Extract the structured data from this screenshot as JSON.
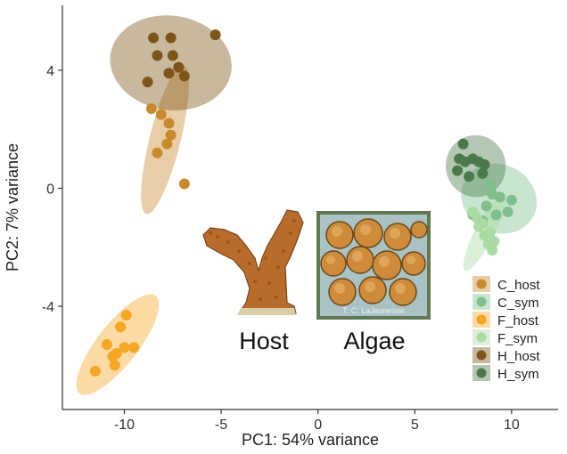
{
  "chart_data": {
    "type": "scatter",
    "title": "",
    "xlabel": "PC1: 54% variance",
    "ylabel": "PC2: 7% variance",
    "xlim": [
      -13.2,
      12.4
    ],
    "ylim": [
      -7.5,
      6.2
    ],
    "xticks": [
      -10,
      -5,
      0,
      5,
      10
    ],
    "yticks": [
      -4,
      0,
      4
    ],
    "legend_position": "bottom-right",
    "series": [
      {
        "name": "C_host",
        "color": "#c98a2b",
        "points": [
          [
            -8.6,
            2.7
          ],
          [
            -8.1,
            2.5
          ],
          [
            -7.7,
            2.2
          ],
          [
            -7.6,
            1.8
          ],
          [
            -7.8,
            1.5
          ],
          [
            -8.3,
            1.2
          ],
          [
            -6.9,
            0.15
          ]
        ],
        "ellipse": {
          "center": [
            -7.9,
            1.65
          ],
          "semi_axes": [
            0.8,
            2.6
          ],
          "rotation_deg": 14
        }
      },
      {
        "name": "C_sym",
        "color": "#7fc08c",
        "points": [
          [
            8.9,
            0.1
          ],
          [
            9.4,
            -0.3
          ],
          [
            10.0,
            -0.4
          ],
          [
            9.8,
            -0.8
          ],
          [
            8.7,
            -0.6
          ],
          [
            9.2,
            -0.9
          ],
          [
            8.5,
            -1.1
          ],
          [
            8.0,
            -0.9
          ],
          [
            9.0,
            -0.2
          ]
        ],
        "ellipse": {
          "center": [
            9.35,
            -0.35
          ],
          "semi_axes": [
            2.0,
            1.15
          ],
          "rotation_deg": 28
        }
      },
      {
        "name": "F_host",
        "color": "#f5a623",
        "points": [
          [
            -11.5,
            -6.2
          ],
          [
            -10.9,
            -5.3
          ],
          [
            -10.4,
            -5.6
          ],
          [
            -10.2,
            -4.7
          ],
          [
            -9.9,
            -4.3
          ],
          [
            -10.0,
            -5.4
          ],
          [
            -9.5,
            -5.4
          ],
          [
            -10.6,
            -5.7
          ],
          [
            -10.5,
            -6.0
          ]
        ],
        "ellipse": {
          "center": [
            -10.35,
            -5.3
          ],
          "semi_axes": [
            1.05,
            2.1
          ],
          "rotation_deg": 38
        }
      },
      {
        "name": "F_sym",
        "color": "#a9dca1",
        "points": [
          [
            8.0,
            -0.8
          ],
          [
            8.2,
            -1.0
          ],
          [
            8.3,
            -1.3
          ],
          [
            8.6,
            -1.6
          ],
          [
            8.8,
            -1.9
          ],
          [
            9.0,
            -2.1
          ],
          [
            9.1,
            -1.8
          ],
          [
            8.5,
            -1.2
          ],
          [
            8.9,
            -1.5
          ]
        ],
        "ellipse": {
          "center": [
            8.6,
            -1.5
          ],
          "semi_axes": [
            0.5,
            1.45
          ],
          "rotation_deg": 27
        }
      },
      {
        "name": "H_host",
        "color": "#7d5518",
        "points": [
          [
            -8.5,
            5.1
          ],
          [
            -7.6,
            5.1
          ],
          [
            -5.3,
            5.2
          ],
          [
            -8.3,
            4.5
          ],
          [
            -7.5,
            4.5
          ],
          [
            -7.2,
            4.1
          ],
          [
            -7.7,
            3.9
          ],
          [
            -6.9,
            3.8
          ],
          [
            -8.8,
            3.6
          ]
        ],
        "ellipse": {
          "center": [
            -7.6,
            4.25
          ],
          "semi_axes": [
            3.15,
            1.6
          ],
          "rotation_deg": 8
        }
      },
      {
        "name": "H_sym",
        "color": "#4a7a4a",
        "points": [
          [
            7.5,
            1.5
          ],
          [
            7.2,
            0.6
          ],
          [
            7.6,
            0.9
          ],
          [
            8.0,
            1.0
          ],
          [
            8.3,
            0.9
          ],
          [
            8.6,
            0.8
          ],
          [
            7.8,
            0.4
          ],
          [
            8.5,
            0.5
          ],
          [
            7.3,
            1.0
          ]
        ],
        "ellipse": {
          "center": [
            8.15,
            0.75
          ],
          "semi_axes": [
            1.55,
            1.05
          ],
          "rotation_deg": -12
        }
      }
    ]
  },
  "annotations": {
    "host_label": "Host",
    "algae_label": "Algae",
    "photo_credit": "T. C. LaJeunesse"
  }
}
